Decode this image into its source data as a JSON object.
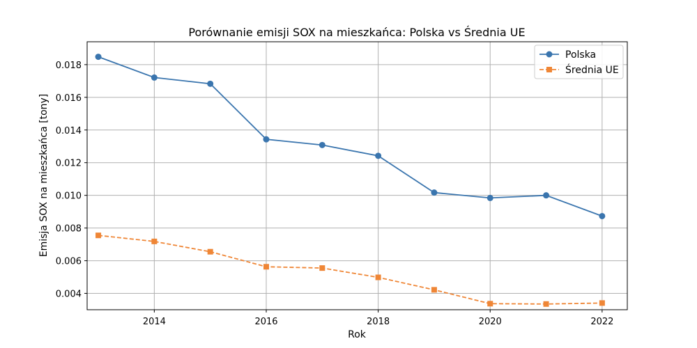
{
  "chart_data": {
    "type": "line",
    "title": "Porównanie emisji SOX na mieszkańca: Polska vs Średnia UE",
    "xlabel": "Rok",
    "ylabel": "Emisja SOX na mieszkańca [tony]",
    "xlim": [
      2012.8,
      2022.45
    ],
    "ylim": [
      0.003,
      0.0194
    ],
    "grid": true,
    "legend_position": "top-right",
    "x_ticks": [
      2014,
      2016,
      2018,
      2020,
      2022
    ],
    "y_ticks": [
      0.004,
      0.006,
      0.008,
      0.01,
      0.012,
      0.014,
      0.016,
      0.018
    ],
    "x_tick_labels": [
      "2014",
      "2016",
      "2018",
      "2020",
      "2022"
    ],
    "y_tick_labels": [
      "0.004",
      "0.006",
      "0.008",
      "0.010",
      "0.012",
      "0.014",
      "0.016",
      "0.018"
    ],
    "x": [
      2013,
      2014,
      2015,
      2016,
      2017,
      2018,
      2019,
      2020,
      2021,
      2022
    ],
    "series": [
      {
        "name": "Polska",
        "color": "#3a75ae",
        "marker": "circle",
        "line_style": "solid",
        "values": [
          0.01848,
          0.01721,
          0.01683,
          0.01343,
          0.01308,
          0.01242,
          0.01017,
          0.00984,
          0.01,
          0.00873
        ]
      },
      {
        "name": "Średnia UE",
        "color": "#ef8636",
        "marker": "square",
        "line_style": "dashed",
        "values": [
          0.00755,
          0.00718,
          0.00655,
          0.00563,
          0.00555,
          0.00498,
          0.00422,
          0.00337,
          0.00335,
          0.00341
        ]
      }
    ]
  },
  "colors": {
    "grid": "#b0b0b0",
    "axes": "#000000",
    "legend_border": "#cccccc"
  }
}
